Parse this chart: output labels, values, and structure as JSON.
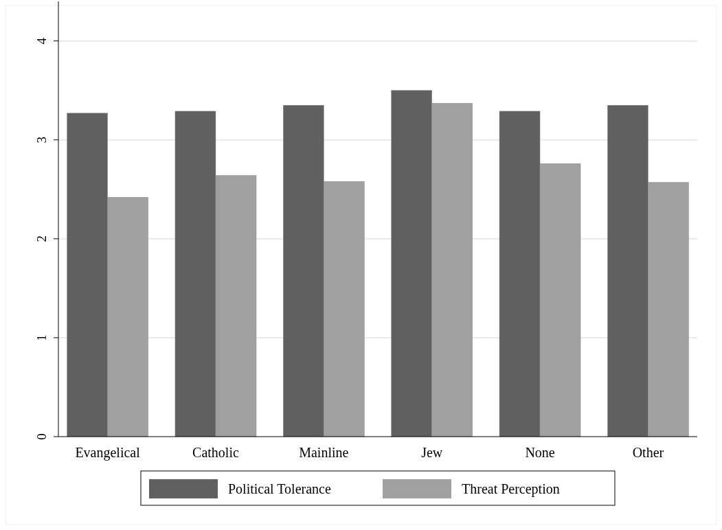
{
  "chart_data": {
    "type": "bar",
    "categories": [
      "Evangelical",
      "Catholic",
      "Mainline",
      "Jew",
      "None",
      "Other"
    ],
    "series": [
      {
        "name": "Political Tolerance",
        "color": "#606060",
        "values": [
          3.27,
          3.29,
          3.35,
          3.5,
          3.29,
          3.35
        ]
      },
      {
        "name": "Threat Perception",
        "color": "#a0a0a0",
        "values": [
          2.42,
          2.64,
          2.58,
          3.37,
          2.76,
          2.57
        ]
      }
    ],
    "ylim": [
      0,
      4.4
    ],
    "yticks": [
      0,
      1,
      2,
      3,
      4
    ],
    "grid": "y",
    "legend": "bottom"
  }
}
